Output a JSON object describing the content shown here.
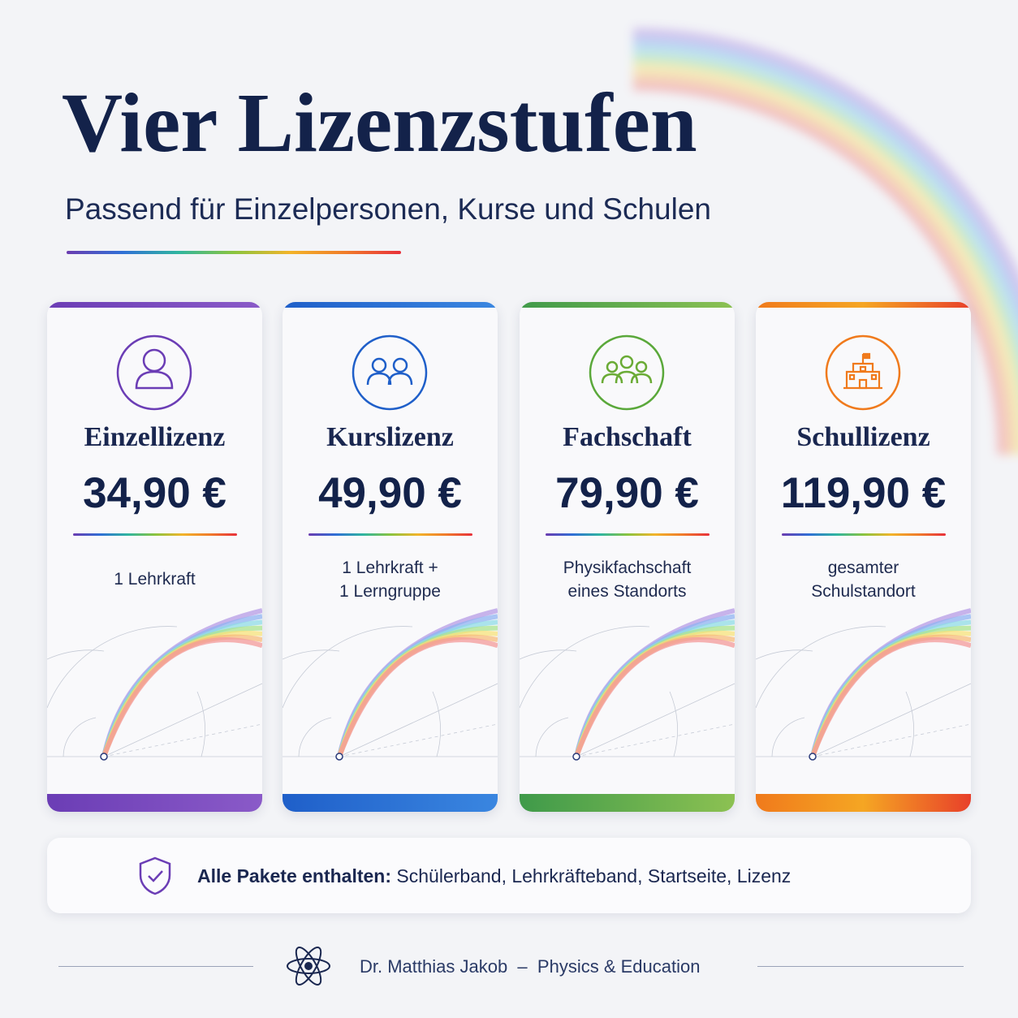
{
  "header": {
    "title": "Vier Lizenzstufen",
    "subtitle": "Passend für Einzelpersonen, Kurse und Schulen"
  },
  "tiers": [
    {
      "name": "Einzellizenz",
      "price": "34,90 €",
      "description": [
        "1 Lehrkraft"
      ]
    },
    {
      "name": "Kurslizenz",
      "price": "49,90 €",
      "description": [
        "1 Lehrkraft +",
        "1 Lerngruppe"
      ]
    },
    {
      "name": "Fachschaft",
      "price": "79,90 €",
      "description": [
        "Physikfachschaft",
        "eines Standorts"
      ]
    },
    {
      "name": "Schullizenz",
      "price": "119,90 €",
      "description": [
        "gesamter",
        "Schulstandort"
      ]
    }
  ],
  "included": {
    "label": "Alle Pakete enthalten:",
    "items": "Schülerband, Lehrkräfteband, Startseite, Lizenz"
  },
  "footer": {
    "author": "Dr. Matthias Jakob",
    "separator": "–",
    "tagline": "Physics & Education"
  }
}
